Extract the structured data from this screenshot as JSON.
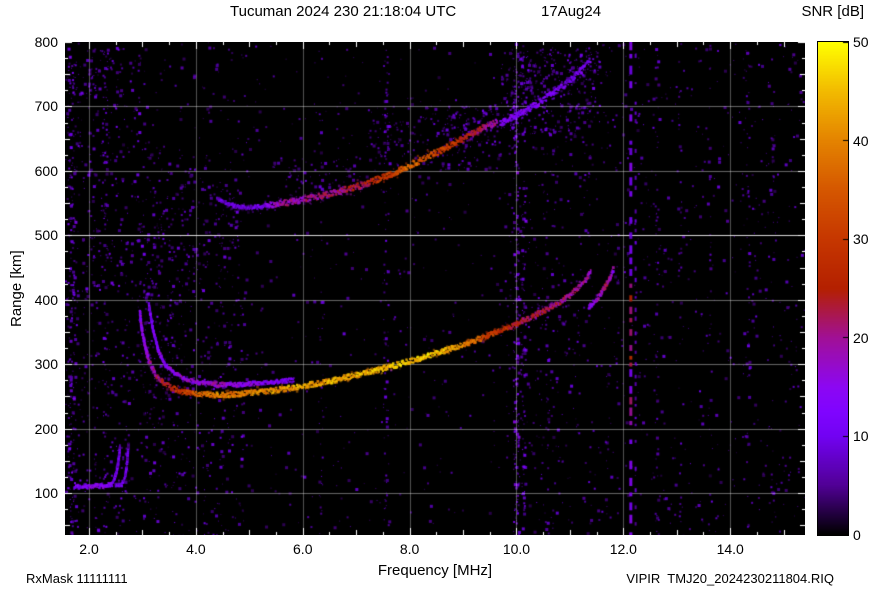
{
  "chart_data": {
    "type": "heatmap",
    "title": "Tucuman 2024 230 21:18:04 UTC",
    "date_label": "17Aug24",
    "xlabel": "Frequency [MHz]",
    "ylabel": "Range [km]",
    "colorbar_label": "SNR [dB]",
    "annotations": {
      "bottom_left": "RxMask 11111111",
      "bottom_right": "VIPIR  TMJ20_2024230211804.RIQ"
    },
    "xlim": [
      1.55,
      15.4
    ],
    "ylim": [
      35,
      800
    ],
    "clim": [
      0,
      50
    ],
    "xticks": [
      2,
      4,
      6,
      8,
      10,
      12,
      14
    ],
    "xtick_labels": [
      "2.0",
      "4.0",
      "6.0",
      "8.0",
      "10.0",
      "12.0",
      "14.0"
    ],
    "yticks": [
      100,
      200,
      300,
      400,
      500,
      600,
      700,
      800
    ],
    "cticks": [
      0,
      10,
      20,
      30,
      40,
      50
    ],
    "grid": {
      "color": "#ffffff",
      "x": [
        2,
        4,
        6,
        8,
        10,
        12,
        14
      ],
      "y": [
        100,
        200,
        300,
        400,
        500,
        600,
        700
      ],
      "emphasis_y": [
        500
      ]
    },
    "plot_bg": "#000000",
    "colormap": [
      {
        "t": 0.0,
        "c": "#000000"
      },
      {
        "t": 0.1,
        "c": "#510096"
      },
      {
        "t": 0.2,
        "c": "#7202F3"
      },
      {
        "t": 0.25,
        "c": "#8004FF"
      },
      {
        "t": 0.3,
        "c": "#8C07F3"
      },
      {
        "t": 0.4,
        "c": "#A11096"
      },
      {
        "t": 0.5,
        "c": "#B42000"
      },
      {
        "t": 0.6,
        "c": "#C63700"
      },
      {
        "t": 0.7,
        "c": "#D55700"
      },
      {
        "t": 0.8,
        "c": "#E48300"
      },
      {
        "t": 0.9,
        "c": "#F2BA00"
      },
      {
        "t": 1.0,
        "c": "#FFFF00"
      }
    ],
    "traces": [
      {
        "name": "E-layer-flat",
        "width": 4,
        "fuzz": 1,
        "points": [
          [
            1.72,
            109,
            10
          ],
          [
            1.9,
            110,
            13
          ],
          [
            2.1,
            111,
            14
          ],
          [
            2.3,
            111,
            13
          ],
          [
            2.45,
            114,
            12
          ]
        ]
      },
      {
        "name": "E-layer-cusp-1",
        "width": 3,
        "fuzz": 0,
        "points": [
          [
            2.45,
            117,
            10
          ],
          [
            2.5,
            127,
            10
          ],
          [
            2.54,
            143,
            9
          ],
          [
            2.57,
            162,
            8
          ],
          [
            2.58,
            174,
            7
          ]
        ]
      },
      {
        "name": "E-layer-flat-2",
        "width": 3,
        "fuzz": 0,
        "points": [
          [
            2.5,
            112,
            9
          ],
          [
            2.63,
            113,
            10
          ]
        ]
      },
      {
        "name": "E-layer-cusp-2",
        "width": 3,
        "fuzz": 0,
        "points": [
          [
            2.63,
            116,
            9
          ],
          [
            2.68,
            127,
            9
          ],
          [
            2.71,
            146,
            8
          ],
          [
            2.73,
            165,
            7
          ],
          [
            2.74,
            178,
            6
          ]
        ]
      },
      {
        "name": "F-trace-O-mode",
        "width": 5,
        "fuzz": 2,
        "points": [
          [
            2.95,
            380,
            13
          ],
          [
            3.0,
            348,
            15
          ],
          [
            3.06,
            324,
            16
          ],
          [
            3.13,
            303,
            18
          ],
          [
            3.23,
            287,
            20
          ],
          [
            3.36,
            273,
            23
          ],
          [
            3.52,
            264,
            26
          ],
          [
            3.72,
            258,
            30
          ],
          [
            3.95,
            255,
            34
          ],
          [
            4.2,
            253,
            38
          ],
          [
            4.5,
            252,
            40
          ],
          [
            4.8,
            254,
            39
          ],
          [
            5.1,
            256,
            40
          ],
          [
            5.4,
            259,
            41
          ],
          [
            5.7,
            262,
            42
          ],
          [
            6.0,
            266,
            43
          ],
          [
            6.3,
            270,
            42
          ],
          [
            6.6,
            275,
            44
          ],
          [
            6.9,
            281,
            43
          ],
          [
            7.2,
            287,
            45
          ],
          [
            7.5,
            293,
            44
          ],
          [
            7.8,
            300,
            46
          ],
          [
            8.1,
            307,
            45
          ],
          [
            8.4,
            314,
            46
          ],
          [
            8.7,
            322,
            44
          ],
          [
            9.0,
            330,
            40
          ],
          [
            9.3,
            339,
            35
          ],
          [
            9.6,
            349,
            30
          ],
          [
            9.9,
            359,
            26
          ],
          [
            10.2,
            370,
            23
          ],
          [
            10.5,
            382,
            22
          ],
          [
            10.8,
            396,
            21
          ],
          [
            11.0,
            407,
            20
          ],
          [
            11.15,
            418,
            20
          ],
          [
            11.3,
            431,
            19
          ],
          [
            11.4,
            444,
            17
          ]
        ]
      },
      {
        "name": "F-trace-X-mode-left",
        "width": 4,
        "fuzz": 1,
        "points": [
          [
            3.12,
            392,
            11
          ],
          [
            3.2,
            352,
            12
          ],
          [
            3.3,
            320,
            13
          ],
          [
            3.42,
            300,
            14
          ],
          [
            3.58,
            287,
            15
          ],
          [
            3.78,
            278,
            16
          ],
          [
            4.05,
            272,
            17
          ],
          [
            4.35,
            269,
            17
          ],
          [
            4.65,
            268,
            16
          ],
          [
            4.95,
            269,
            15
          ],
          [
            5.25,
            271,
            14
          ],
          [
            5.55,
            273,
            12
          ],
          [
            5.85,
            276,
            10
          ]
        ]
      },
      {
        "name": "F-trace-X-mode-right",
        "width": 5,
        "fuzz": 2,
        "points": [
          [
            11.35,
            388,
            14
          ],
          [
            11.48,
            399,
            16
          ],
          [
            11.58,
            410,
            18
          ],
          [
            11.68,
            423,
            22
          ],
          [
            11.76,
            436,
            20
          ],
          [
            11.82,
            448,
            15
          ]
        ]
      },
      {
        "name": "second-hop-F-trace",
        "width": 6,
        "fuzz": 3,
        "points": [
          [
            5.3,
            546,
            13
          ],
          [
            5.5,
            548,
            17
          ],
          [
            5.7,
            551,
            19
          ],
          [
            5.9,
            554,
            18
          ],
          [
            6.1,
            557,
            21
          ],
          [
            6.3,
            560,
            20
          ],
          [
            6.5,
            564,
            22
          ],
          [
            6.7,
            568,
            21
          ],
          [
            6.9,
            573,
            23
          ],
          [
            7.1,
            578,
            24
          ],
          [
            7.3,
            584,
            26
          ],
          [
            7.5,
            590,
            29
          ],
          [
            7.7,
            597,
            32
          ],
          [
            7.9,
            604,
            36
          ],
          [
            8.1,
            612,
            37
          ],
          [
            8.3,
            620,
            35
          ],
          [
            8.5,
            628,
            32
          ],
          [
            8.7,
            636,
            30
          ],
          [
            8.9,
            645,
            28
          ],
          [
            9.1,
            654,
            26
          ],
          [
            9.3,
            663,
            23
          ],
          [
            9.5,
            671,
            20
          ],
          [
            9.65,
            677,
            17
          ]
        ]
      },
      {
        "name": "second-hop-faint-continuation",
        "width": 6,
        "fuzz": 6,
        "points": [
          [
            9.7,
            674,
            13
          ],
          [
            9.95,
            684,
            13
          ],
          [
            10.2,
            695,
            12
          ],
          [
            10.45,
            707,
            12
          ],
          [
            10.7,
            721,
            11
          ],
          [
            10.95,
            737,
            11
          ],
          [
            11.2,
            755,
            10
          ],
          [
            11.4,
            773,
            9
          ]
        ]
      },
      {
        "name": "second-hop-leading-edge",
        "width": 4,
        "fuzz": 3,
        "points": [
          [
            4.4,
            557,
            8
          ],
          [
            4.6,
            549,
            9
          ],
          [
            4.8,
            544,
            9
          ],
          [
            5.0,
            543,
            8
          ],
          [
            5.15,
            544,
            9
          ],
          [
            5.3,
            546,
            10
          ]
        ]
      }
    ],
    "clouds": [
      {
        "f": [
          5.4,
          7.2
        ],
        "r": [
          556,
          622
        ],
        "density": 0.07,
        "snr": [
          3,
          10
        ]
      },
      {
        "f": [
          7.2,
          9.7
        ],
        "r": [
          600,
          702
        ],
        "density": 0.09,
        "snr": [
          4,
          11
        ]
      },
      {
        "f": [
          9.7,
          11.55
        ],
        "r": [
          658,
          792
        ],
        "density": 0.15,
        "snr": [
          4,
          13
        ]
      },
      {
        "f": [
          8.6,
          9.75
        ],
        "r": [
          640,
          695
        ],
        "density": 0.1,
        "snr": [
          4,
          12
        ]
      },
      {
        "f": [
          2.9,
          3.8
        ],
        "r": [
          258,
          430
        ],
        "density": 0.07,
        "snr": [
          3,
          11
        ]
      },
      {
        "f": [
          3.0,
          4.7
        ],
        "r": [
          430,
          580
        ],
        "density": 0.05,
        "snr": [
          3,
          9
        ]
      },
      {
        "f": [
          1.95,
          2.4
        ],
        "r": [
          715,
          788
        ],
        "density": 0.12,
        "snr": [
          5,
          13
        ]
      },
      {
        "f": [
          9.6,
          11.3
        ],
        "r": [
          360,
          440
        ],
        "density": 0.04,
        "snr": [
          3,
          9
        ]
      }
    ],
    "noise": {
      "seed": 1337,
      "regions": [
        {
          "f": [
            1.55,
            3.05
          ],
          "r": [
            35,
            800
          ],
          "density": 0.06,
          "snr": [
            3,
            13
          ]
        },
        {
          "f": [
            3.05,
            4.9
          ],
          "r": [
            35,
            640
          ],
          "density": 0.055,
          "snr": [
            3,
            13
          ]
        },
        {
          "f": [
            3.05,
            4.9
          ],
          "r": [
            640,
            800
          ],
          "density": 0.02,
          "snr": [
            3,
            10
          ]
        },
        {
          "f": [
            4.9,
            9.75
          ],
          "r": [
            35,
            800
          ],
          "density": 0.012,
          "snr": [
            3,
            9
          ]
        },
        {
          "f": [
            9.75,
            12.05
          ],
          "r": [
            35,
            800
          ],
          "density": 0.03,
          "snr": [
            3,
            11
          ]
        },
        {
          "f": [
            12.05,
            15.4
          ],
          "r": [
            35,
            800
          ],
          "density": 0.022,
          "snr": [
            3,
            11
          ]
        }
      ],
      "columns": [
        {
          "f": 1.66,
          "width": 0.14,
          "density": 0.2,
          "snr": [
            5,
            14
          ]
        },
        {
          "f": 2.3,
          "width": 0.1,
          "density": 0.1,
          "snr": [
            4,
            12
          ]
        },
        {
          "f": 6.33,
          "width": 0.08,
          "density": 0.08,
          "snr": [
            4,
            11
          ]
        },
        {
          "f": 7.55,
          "width": 0.1,
          "density": 0.12,
          "snr": [
            5,
            13
          ]
        },
        {
          "f": 9.98,
          "width": 0.1,
          "density": 0.3,
          "snr": [
            7,
            16
          ]
        },
        {
          "f": 10.12,
          "width": 0.07,
          "density": 0.2,
          "snr": [
            6,
            14
          ]
        },
        {
          "f": 10.55,
          "width": 0.06,
          "density": 0.08,
          "snr": [
            4,
            11
          ]
        },
        {
          "f": 12.62,
          "width": 0.06,
          "density": 0.1,
          "snr": [
            4,
            11
          ]
        },
        {
          "f": 13.05,
          "width": 0.05,
          "density": 0.08,
          "snr": [
            4,
            10
          ]
        },
        {
          "f": 13.62,
          "width": 0.05,
          "density": 0.07,
          "snr": [
            4,
            10
          ]
        },
        {
          "f": 14.32,
          "width": 0.07,
          "density": 0.1,
          "snr": [
            4,
            11
          ]
        },
        {
          "f": 14.78,
          "width": 0.05,
          "density": 0.07,
          "snr": [
            4,
            10
          ]
        }
      ]
    },
    "interference_lines": [
      {
        "f": 12.14,
        "width": 3,
        "dash": [
          6,
          6
        ],
        "snr": [
          9,
          15
        ],
        "hot": [
          {
            "r": [
              300,
              445
            ],
            "snr": [
              20,
              29
            ]
          },
          {
            "r": [
              210,
              258
            ],
            "snr": [
              16,
              24
            ]
          }
        ]
      },
      {
        "f": 12.23,
        "width": 2,
        "dash": [
          3,
          9
        ],
        "snr": [
          5,
          10
        ],
        "hot": []
      }
    ]
  }
}
